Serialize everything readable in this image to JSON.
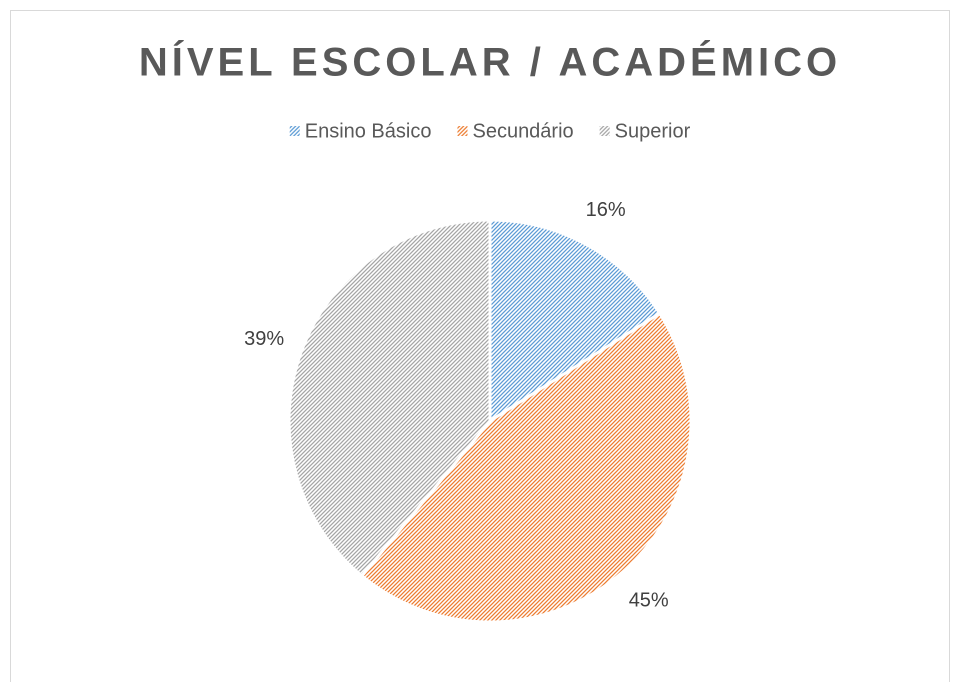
{
  "chart_data": {
    "type": "pie",
    "title": "NÍVEL ESCOLAR / ACADÉMICO",
    "categories": [
      "Ensino Básico",
      "Secundário",
      "Superior"
    ],
    "values": [
      16,
      45,
      39
    ],
    "value_labels": [
      "16%",
      "45%",
      "39%"
    ],
    "colors": [
      "#5b9bd5",
      "#ed7d31",
      "#a5a5a5"
    ],
    "legend": "top"
  }
}
